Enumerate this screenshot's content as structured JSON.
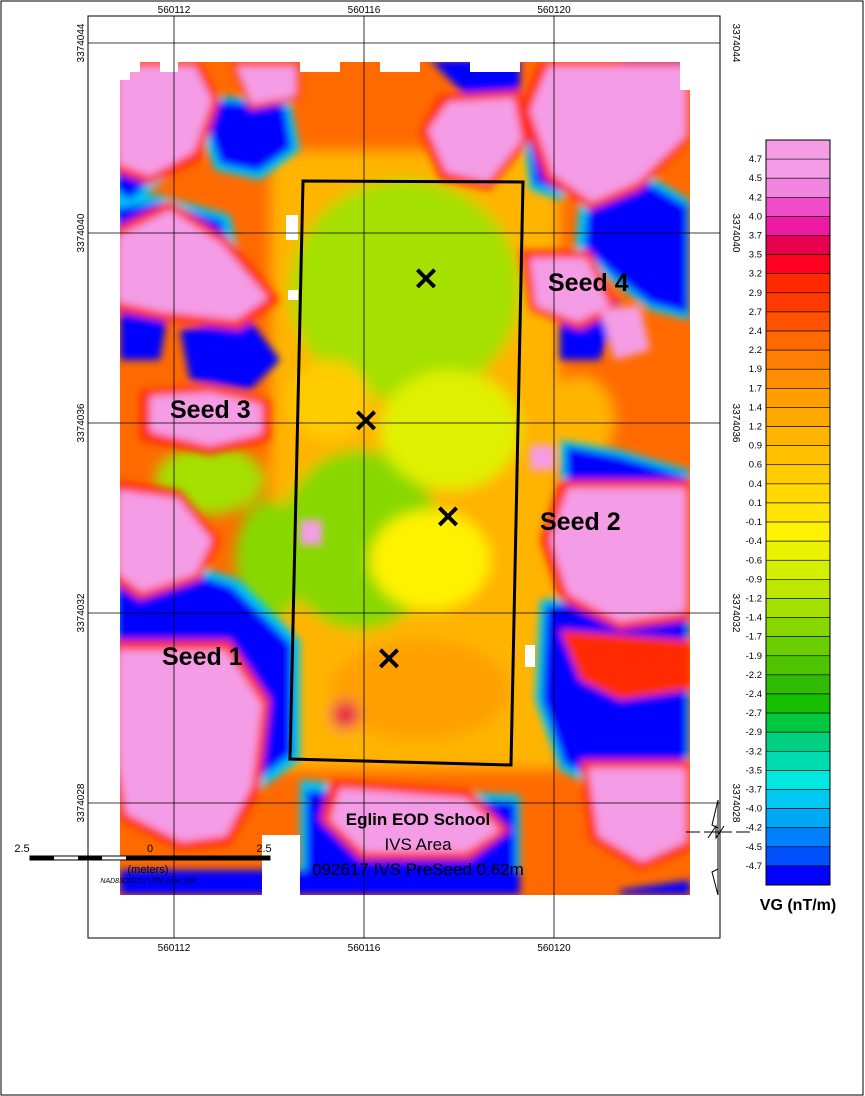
{
  "map": {
    "top_ticks_x": [
      "560112",
      "560116",
      "560120"
    ],
    "bottom_ticks_x": [
      "560112",
      "560116",
      "560120"
    ],
    "left_ticks_y": [
      "3374044",
      "3374040",
      "3374036",
      "3374032",
      "3374028"
    ],
    "right_ticks_y": [
      "3374044",
      "3374040",
      "3374036",
      "3374032",
      "3374028"
    ],
    "seed_labels": [
      "Seed 4",
      "Seed 3",
      "Seed 2",
      "Seed 1"
    ],
    "marker_symbol": "×",
    "colors": {
      "low": "#0000ff",
      "high": "#f49ce6",
      "boundary": "#000000"
    }
  },
  "legend": {
    "title": "VG (nT/m)",
    "values": [
      "4.7",
      "4.5",
      "4.2",
      "4.0",
      "3.7",
      "3.5",
      "3.2",
      "2.9",
      "2.7",
      "2.4",
      "2.2",
      "1.9",
      "1.7",
      "1.4",
      "1.2",
      "0.9",
      "0.6",
      "0.4",
      "0.1",
      "-0.1",
      "-0.4",
      "-0.6",
      "-0.9",
      "-1.2",
      "-1.4",
      "-1.7",
      "-1.9",
      "-2.2",
      "-2.4",
      "-2.7",
      "-2.9",
      "-3.2",
      "-3.5",
      "-3.7",
      "-4.0",
      "-4.2",
      "-4.5",
      "-4.7"
    ],
    "colors": [
      "#f49ce6",
      "#f285e0",
      "#f04cc8",
      "#ef1aa4",
      "#e8004e",
      "#ff0020",
      "#ff2a00",
      "#ff3a00",
      "#ff5200",
      "#ff6a00",
      "#ff7d00",
      "#ff8f00",
      "#ff9e00",
      "#ffa800",
      "#ffb400",
      "#ffc000",
      "#ffcc00",
      "#ffd800",
      "#ffe600",
      "#fff200",
      "#eaf200",
      "#d4f000",
      "#bce800",
      "#a4e000",
      "#88d800",
      "#6ace00",
      "#4ec400",
      "#30bc00",
      "#16c000",
      "#00c840",
      "#00d080",
      "#00dcb0",
      "#00e8e0",
      "#00c8f0",
      "#00a8f8",
      "#0080fc",
      "#0050fe",
      "#0000ff"
    ]
  },
  "scale_bar": {
    "left": "2.5",
    "center": "0",
    "right": "2.5",
    "units": "(meters)",
    "datum": "NAD83(2011) / UTM zone 16N"
  },
  "title_block": {
    "line1": "Eglin EOD School",
    "line2": "IVS Area",
    "line3": "092617 IVS PreSeed 0.62m"
  }
}
